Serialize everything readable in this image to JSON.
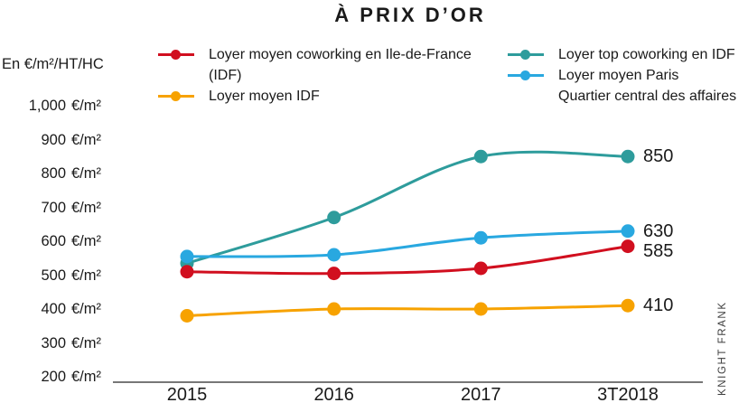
{
  "title": "À PRIX D’OR",
  "y_axis": {
    "unit_label": "En €/m²/HT/HC",
    "unit": "€/m²",
    "ticks": [
      "1,000",
      "900",
      "800",
      "700",
      "600",
      "500",
      "400",
      "300",
      "200"
    ]
  },
  "x_axis": {
    "categories": [
      "2015",
      "2016",
      "2017",
      "3T2018"
    ]
  },
  "legend": {
    "left": [
      {
        "series": 0,
        "lines": [
          "Loyer moyen coworking en Ile-de-France",
          "(IDF)"
        ]
      },
      {
        "series": 1,
        "lines": [
          "Loyer moyen IDF"
        ]
      }
    ],
    "right": [
      {
        "series": 2,
        "lines": [
          "Loyer top coworking en IDF"
        ]
      },
      {
        "series": 3,
        "lines": [
          "Loyer moyen Paris",
          "Quartier central des affaires"
        ]
      }
    ]
  },
  "branding": "KNIGHT FRANK",
  "colors": {
    "red": "#d10f1f",
    "orange": "#f7a200",
    "teal": "#2e9c9c",
    "blue": "#29a8e0",
    "axis": "#4a4a4a",
    "text": "#1a1a1a"
  },
  "chart_data": {
    "type": "line",
    "title": "À PRIX D’OR",
    "ylabel": "En €/m²/HT/HC",
    "categories": [
      "2015",
      "2016",
      "2017",
      "3T2018"
    ],
    "series": [
      {
        "name": "Loyer moyen coworking en Ile-de-France (IDF)",
        "color": "#d10f1f",
        "values": [
          510,
          505,
          520,
          585
        ],
        "end_label": "585"
      },
      {
        "name": "Loyer moyen IDF",
        "color": "#f7a200",
        "values": [
          380,
          400,
          400,
          410
        ],
        "end_label": "410"
      },
      {
        "name": "Loyer top coworking en IDF",
        "color": "#2e9c9c",
        "values": [
          535,
          670,
          850,
          850
        ],
        "end_label": "850"
      },
      {
        "name": "Loyer moyen Paris Quartier central des affaires",
        "color": "#29a8e0",
        "values": [
          555,
          560,
          610,
          630
        ],
        "end_label": "630"
      }
    ],
    "ylim": [
      200,
      1000
    ],
    "y_tick_step": 100,
    "grid": false,
    "legend_position": "top",
    "smooth": true
  }
}
